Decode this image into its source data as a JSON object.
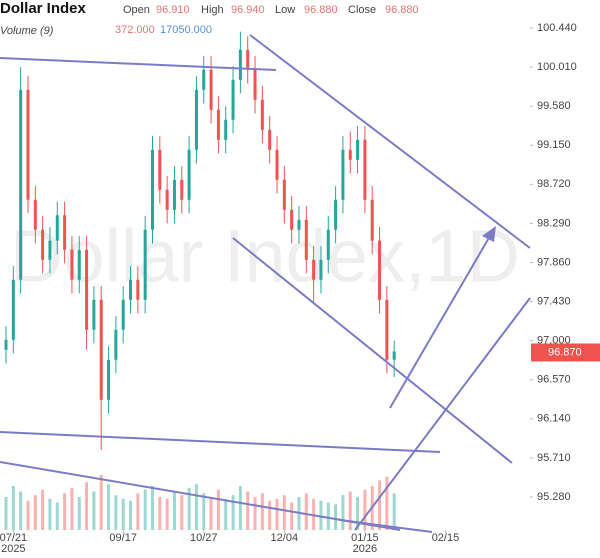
{
  "chart_data": {
    "type": "candlestick",
    "title": "Dollar Index",
    "header": {
      "open_label": "Open",
      "open": "96.910",
      "high_label": "High",
      "high": "96.940",
      "low_label": "Low",
      "low": "96.880",
      "close_label": "Close",
      "close": "96.880"
    },
    "volume_header": {
      "label": "Volume (9)",
      "value": "372.000",
      "ma": "17050.000"
    },
    "watermark": "Dollar Index,1D",
    "open": [
      96.9,
      97.01,
      97.67,
      99.76,
      98.55,
      98.22,
      97.89,
      98.1,
      98.38,
      98.0,
      97.67,
      98.0,
      97.12,
      97.45,
      96.35,
      96.79,
      97.12,
      97.45,
      97.67,
      97.45,
      98.22,
      99.1,
      98.66,
      98.44,
      98.77,
      98.55,
      99.1,
      99.76,
      99.98,
      99.54,
      99.21,
      99.43,
      99.87,
      100.2,
      99.98,
      99.65,
      99.32,
      99.1,
      98.77,
      98.44,
      98.22,
      98.33,
      97.89,
      97.67,
      97.89,
      98.22,
      98.55,
      99.1,
      98.99,
      99.21,
      98.55,
      98.1,
      97.45,
      96.79
    ],
    "high": [
      97.16,
      97.82,
      100.01,
      99.91,
      98.7,
      98.37,
      98.25,
      98.53,
      98.53,
      98.15,
      98.15,
      98.15,
      97.6,
      97.6,
      96.94,
      97.27,
      97.6,
      97.82,
      97.82,
      98.37,
      99.25,
      99.25,
      98.81,
      98.92,
      98.92,
      99.25,
      99.91,
      100.13,
      100.13,
      99.69,
      99.58,
      100.02,
      100.4,
      100.35,
      100.13,
      99.8,
      99.47,
      99.25,
      98.92,
      98.59,
      98.48,
      98.48,
      98.04,
      98.04,
      98.37,
      98.7,
      99.25,
      99.3,
      99.36,
      99.36,
      98.7,
      98.25,
      97.6,
      97.0
    ],
    "low": [
      96.75,
      96.86,
      97.52,
      98.4,
      98.07,
      97.74,
      97.74,
      97.95,
      97.85,
      97.52,
      97.52,
      96.9,
      96.97,
      95.8,
      96.2,
      96.64,
      96.97,
      97.3,
      97.3,
      97.3,
      98.07,
      98.51,
      98.29,
      98.29,
      98.4,
      98.4,
      98.95,
      99.61,
      99.39,
      99.06,
      99.06,
      99.28,
      99.72,
      99.83,
      99.5,
      99.17,
      98.95,
      98.62,
      98.29,
      98.07,
      98.07,
      97.74,
      97.4,
      97.52,
      97.74,
      98.07,
      98.4,
      98.84,
      98.84,
      98.4,
      97.95,
      97.3,
      96.64,
      96.6
    ],
    "close": [
      97.01,
      97.67,
      99.76,
      98.55,
      98.22,
      97.89,
      98.1,
      98.38,
      98.0,
      97.67,
      98.0,
      97.12,
      97.45,
      96.35,
      96.79,
      97.12,
      97.45,
      97.67,
      97.45,
      98.22,
      99.1,
      98.66,
      98.44,
      98.77,
      98.55,
      99.1,
      99.76,
      99.98,
      99.54,
      99.21,
      99.43,
      99.87,
      100.2,
      99.98,
      99.65,
      99.32,
      99.1,
      98.77,
      98.44,
      98.22,
      98.33,
      97.89,
      97.67,
      97.89,
      98.22,
      98.55,
      99.1,
      98.99,
      99.21,
      98.55,
      98.1,
      97.45,
      96.79,
      96.88
    ],
    "volume": [
      18000,
      24000,
      21000,
      16000,
      19000,
      22000,
      17000,
      15000,
      20000,
      23000,
      18000,
      26000,
      21000,
      30000,
      25000,
      19000,
      17000,
      16000,
      20000,
      22000,
      24000,
      18000,
      17000,
      21000,
      19000,
      23000,
      25000,
      20000,
      18000,
      22000,
      17000,
      19000,
      24000,
      21000,
      18000,
      20000,
      16000,
      17000,
      19000,
      15000,
      18000,
      20000,
      17000,
      16000,
      15000,
      14000,
      19000,
      21000,
      18000,
      22000,
      24000,
      27000,
      29000,
      20000
    ],
    "up_color": "#26a69a",
    "down_color": "#ef5350",
    "last_price": {
      "value": 96.87,
      "label": "96.870"
    },
    "xlim": [
      -0.82,
      81.1
    ],
    "xticks": [
      {
        "value": 1,
        "label": "07/21"
      },
      {
        "value": 16,
        "label": "09/17"
      },
      {
        "value": 27,
        "label": "10/27"
      },
      {
        "value": 38,
        "label": "12/04"
      },
      {
        "value": 49,
        "label": "01/15"
      },
      {
        "value": 60,
        "label": "02/15"
      }
    ],
    "year_labels": [
      {
        "value": 1,
        "label": "2025"
      },
      {
        "value": 49,
        "label": "2026"
      }
    ],
    "ylim": [
      94.917,
      100.748
    ],
    "yticks": [
      {
        "value": 100.44,
        "label": "100.440"
      },
      {
        "value": 100.01,
        "label": "100.010"
      },
      {
        "value": 99.58,
        "label": "99.580"
      },
      {
        "value": 99.15,
        "label": "99.150"
      },
      {
        "value": 98.72,
        "label": "98.720"
      },
      {
        "value": 98.29,
        "label": "98.290"
      },
      {
        "value": 97.86,
        "label": "97.860"
      },
      {
        "value": 97.43,
        "label": "97.430"
      },
      {
        "value": 97.0,
        "label": "97.000"
      },
      {
        "value": 96.57,
        "label": "96.570"
      },
      {
        "value": 96.14,
        "label": "96.140"
      },
      {
        "value": 95.71,
        "label": "95.710"
      },
      {
        "value": 95.28,
        "label": "95.280"
      }
    ],
    "vlim": [
      0,
      60000
    ]
  }
}
